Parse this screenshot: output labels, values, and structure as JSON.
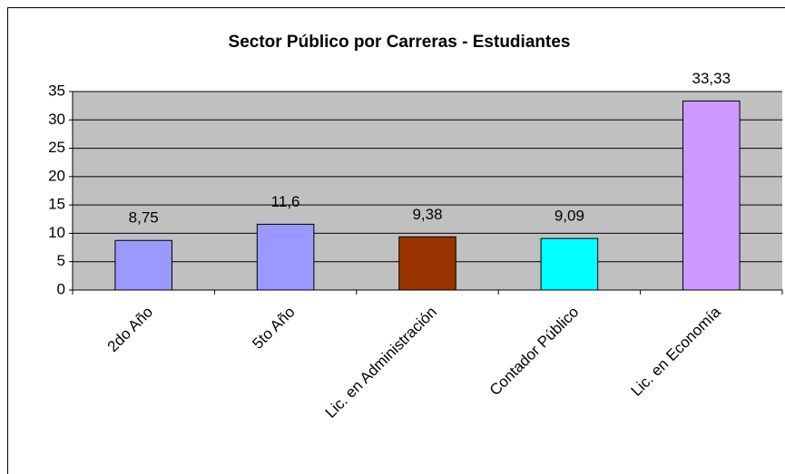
{
  "chart_data": {
    "type": "bar",
    "title": "Sector Público por Carreras - Estudiantes",
    "categories": [
      "2do Año",
      "5to Año",
      "Lic. en Administración",
      "Contador Público",
      "Lic. en Economía"
    ],
    "values": [
      8.75,
      11.6,
      9.38,
      9.09,
      33.33
    ],
    "value_labels": [
      "8,75",
      "11,6",
      "9,38",
      "9,09",
      "33,33"
    ],
    "colors": [
      "#9999ff",
      "#9999ff",
      "#993300",
      "#00ffff",
      "#cc99ff"
    ],
    "ylim": [
      0,
      35
    ],
    "yticks": [
      0,
      5,
      10,
      15,
      20,
      25,
      30,
      35
    ],
    "grid": true
  }
}
